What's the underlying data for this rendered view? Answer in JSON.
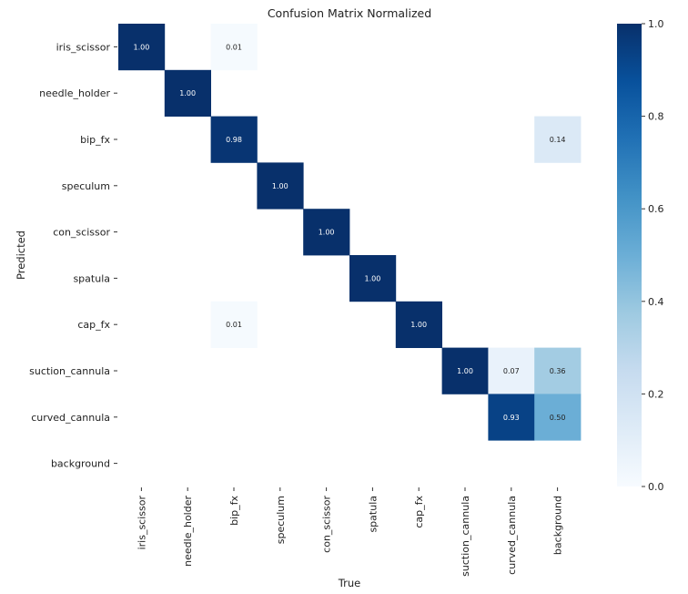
{
  "chart_data": {
    "type": "heatmap",
    "title": "Confusion Matrix Normalized",
    "xlabel": "True",
    "ylabel": "Predicted",
    "x_categories": [
      "iris_scissor",
      "needle_holder",
      "bip_fx",
      "speculum",
      "con_scissor",
      "spatula",
      "cap_fx",
      "suction_cannula",
      "curved_cannula",
      "background"
    ],
    "y_categories": [
      "iris_scissor",
      "needle_holder",
      "bip_fx",
      "speculum",
      "con_scissor",
      "spatula",
      "cap_fx",
      "suction_cannula",
      "curved_cannula",
      "background"
    ],
    "cells": [
      {
        "row": 0,
        "col": 0,
        "value": 1.0,
        "label": "1.00"
      },
      {
        "row": 0,
        "col": 2,
        "value": 0.01,
        "label": "0.01"
      },
      {
        "row": 1,
        "col": 1,
        "value": 1.0,
        "label": "1.00"
      },
      {
        "row": 2,
        "col": 2,
        "value": 0.98,
        "label": "0.98"
      },
      {
        "row": 2,
        "col": 9,
        "value": 0.14,
        "label": "0.14"
      },
      {
        "row": 3,
        "col": 3,
        "value": 1.0,
        "label": "1.00"
      },
      {
        "row": 4,
        "col": 4,
        "value": 1.0,
        "label": "1.00"
      },
      {
        "row": 5,
        "col": 5,
        "value": 1.0,
        "label": "1.00"
      },
      {
        "row": 6,
        "col": 2,
        "value": 0.01,
        "label": "0.01"
      },
      {
        "row": 6,
        "col": 6,
        "value": 1.0,
        "label": "1.00"
      },
      {
        "row": 7,
        "col": 7,
        "value": 1.0,
        "label": "1.00"
      },
      {
        "row": 7,
        "col": 8,
        "value": 0.07,
        "label": "0.07"
      },
      {
        "row": 7,
        "col": 9,
        "value": 0.36,
        "label": "0.36"
      },
      {
        "row": 8,
        "col": 8,
        "value": 0.93,
        "label": "0.93"
      },
      {
        "row": 8,
        "col": 9,
        "value": 0.5,
        "label": "0.50"
      }
    ],
    "colorbar": {
      "range": [
        0.0,
        1.0
      ],
      "ticks": [
        "0.0",
        "0.2",
        "0.4",
        "0.6",
        "0.8",
        "1.0"
      ],
      "colormap": "Blues"
    }
  }
}
